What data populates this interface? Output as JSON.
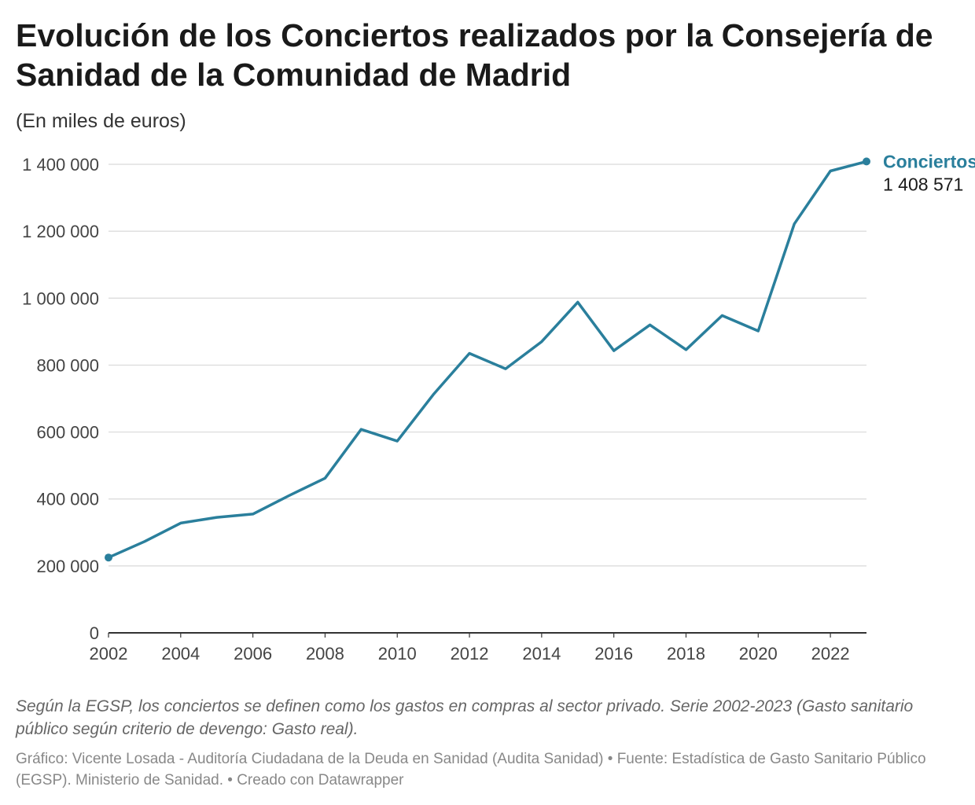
{
  "title": "Evolución de los Conciertos realizados por la Consejería de Sanidad de la Comunidad de Madrid",
  "subtitle": "(En miles de euros)",
  "notes": "Según la EGSP, los conciertos se definen como los gastos en compras al sector privado. Serie 2002-2023 (Gasto sanitario público según criterio de devengo: Gasto real).",
  "credits": "Gráfico: Vicente Losada - Auditoría Ciudadana de la Deuda en Sanidad (Audita Sanidad) • Fuente: Estadística de Gasto Sanitario Público (EGSP). Ministerio de Sanidad. • Creado con Datawrapper",
  "colors": {
    "series": "#2a7f9c",
    "grid": "#d9d9d9",
    "axis": "#333333"
  },
  "chart_data": {
    "type": "line",
    "x": [
      2002,
      2003,
      2004,
      2005,
      2006,
      2007,
      2008,
      2009,
      2010,
      2011,
      2012,
      2013,
      2014,
      2015,
      2016,
      2017,
      2018,
      2019,
      2020,
      2021,
      2022,
      2023
    ],
    "series": [
      {
        "name": "Conciertos",
        "values": [
          225000,
          273000,
          328000,
          345000,
          355000,
          410000,
          462000,
          608000,
          573000,
          712000,
          835000,
          789000,
          870000,
          988000,
          843000,
          920000,
          846000,
          948000,
          902000,
          1222000,
          1380000,
          1408571
        ],
        "end_label": "1 408 571"
      }
    ],
    "xlim": [
      2002,
      2023
    ],
    "ylim": [
      0,
      1400000
    ],
    "x_ticks": [
      2002,
      2004,
      2006,
      2008,
      2010,
      2012,
      2014,
      2016,
      2018,
      2020,
      2022
    ],
    "x_tick_labels": [
      "2002",
      "2004",
      "2006",
      "2008",
      "2010",
      "2012",
      "2014",
      "2016",
      "2018",
      "2020",
      "2022"
    ],
    "y_ticks": [
      0,
      200000,
      400000,
      600000,
      800000,
      1000000,
      1200000,
      1400000
    ],
    "y_tick_labels": [
      "0",
      "200 000",
      "400 000",
      "600 000",
      "800 000",
      "1 000 000",
      "1 200 000",
      "1 400 000"
    ],
    "grid": true
  }
}
